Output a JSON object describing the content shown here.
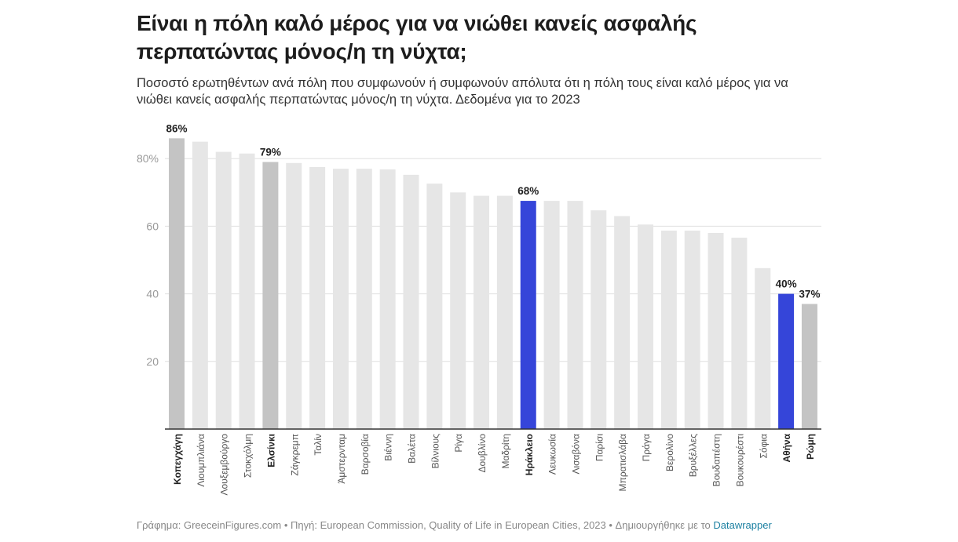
{
  "header": {
    "title": "Είναι η πόλη καλό μέρος για να νιώθει κανείς ασφαλής περπατώντας μόνος/η τη νύχτα;",
    "subtitle": "Ποσοστό ερωτηθέντων ανά πόλη που συμφωνούν ή συμφωνούν απόλυτα ότι η πόλη τους είναι καλό μέρος για να νιώθει κανείς ασφαλής περπατώντας μόνος/η τη νύχτα. Δεδομένα για το 2023"
  },
  "footer": {
    "text": "Γράφημα: GreeceinFigures.com • Πηγή: European Commission, Quality of Life in European Cities, 2023 • Δημιουργήθηκε με το ",
    "link": "Datawrapper"
  },
  "colors": {
    "default": "#e6e6e6",
    "nordic": "#c4c4c4",
    "greece": "#3545d9",
    "rome": "#c4c4c4",
    "grid": "#e0e0e0",
    "axis": "#333333"
  },
  "chart_data": {
    "type": "bar",
    "title": "Είναι η πόλη καλό μέρος για να νιώθει κανείς ασφαλής περπατώντας μόνος/η τη νύχτα;",
    "xlabel": "",
    "ylabel": "",
    "ylim": [
      0,
      90
    ],
    "yticks": [
      20,
      40,
      60,
      80
    ],
    "ytick_labels": [
      "20",
      "40",
      "60",
      "80%"
    ],
    "grid": true,
    "categories": [
      "Κοπεγχάγη",
      "Λιουμπλιάνα",
      "Λουξεμβούργο",
      "Στοκχόλμη",
      "Ελσίνκι",
      "Ζάγκρεμπ",
      "Ταλίν",
      "Άμστερνταμ",
      "Βαρσοβία",
      "Βιέννη",
      "Βαλέτα",
      "Βίλνιους",
      "Ρίγα",
      "Δουβλίνο",
      "Μαδρίτη",
      "Ηράκλειο",
      "Λευκωσία",
      "Λισαβόνα",
      "Παρίσι",
      "Μπρατισλάβα",
      "Πράγα",
      "Βερολίνο",
      "Βρυξέλλες",
      "Βουδαπέστη",
      "Βουκουρέστι",
      "Σόφια",
      "Αθήνα",
      "Ρώμη"
    ],
    "values": [
      86,
      85,
      82,
      81.5,
      79,
      78.7,
      77.5,
      77,
      77,
      76.8,
      75.2,
      72.6,
      70,
      69,
      69,
      67.5,
      67.5,
      67.5,
      64.7,
      63,
      60.5,
      58.7,
      58.7,
      58,
      56.6,
      47.6,
      40,
      37
    ],
    "highlight": [
      "nordic",
      "default",
      "default",
      "default",
      "nordic",
      "default",
      "default",
      "default",
      "default",
      "default",
      "default",
      "default",
      "default",
      "default",
      "default",
      "greece",
      "default",
      "default",
      "default",
      "default",
      "default",
      "default",
      "default",
      "default",
      "default",
      "default",
      "greece",
      "rome"
    ],
    "data_labels": {
      "0": "86%",
      "4": "79%",
      "15": "68%",
      "26": "40%",
      "27": "37%"
    }
  }
}
